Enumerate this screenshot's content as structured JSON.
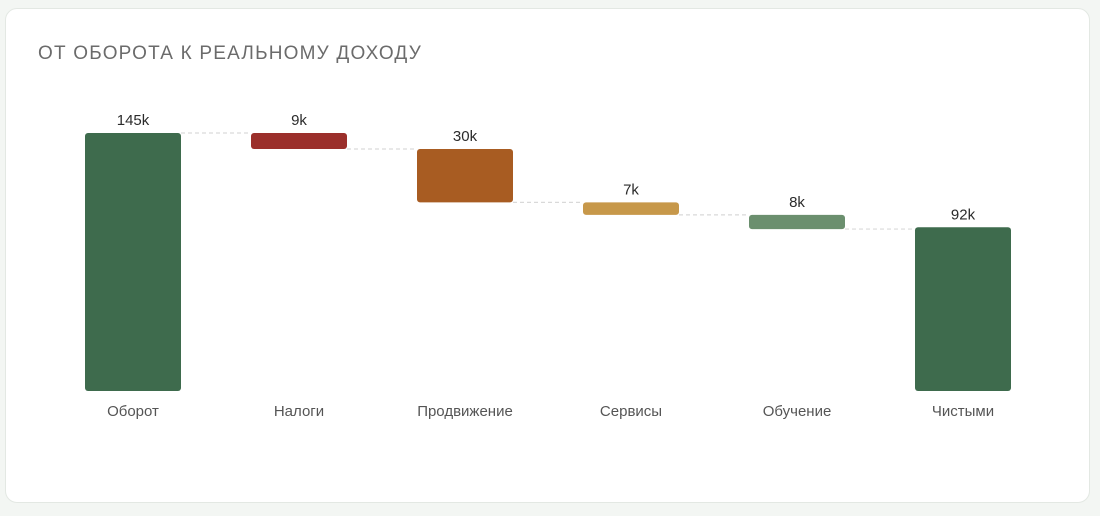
{
  "chart_data": {
    "type": "bar",
    "subtype": "waterfall",
    "title": "ОТ ОБОРОТА К РЕАЛЬНОМУ ДОХОДУ",
    "xlabel": "",
    "ylabel": "",
    "ylim": [
      0,
      145
    ],
    "grid": false,
    "legend": "none",
    "categories": [
      "Оборот",
      "Налоги",
      "Продвижение",
      "Сервисы",
      "Обучение",
      "Чистыми"
    ],
    "values": [
      145,
      -9,
      -30,
      -7,
      -8,
      92
    ],
    "data_labels": [
      "145k",
      "9k",
      "30k",
      "7k",
      "8k",
      "92k"
    ],
    "kinds": [
      "total",
      "decrease",
      "decrease",
      "decrease",
      "decrease",
      "total"
    ],
    "colors": [
      "#3e6b4d",
      "#9b2f2b",
      "#a85c22",
      "#c7984a",
      "#6b8f6e",
      "#3e6b4d"
    ],
    "connector_color": "#d9d9d9"
  }
}
